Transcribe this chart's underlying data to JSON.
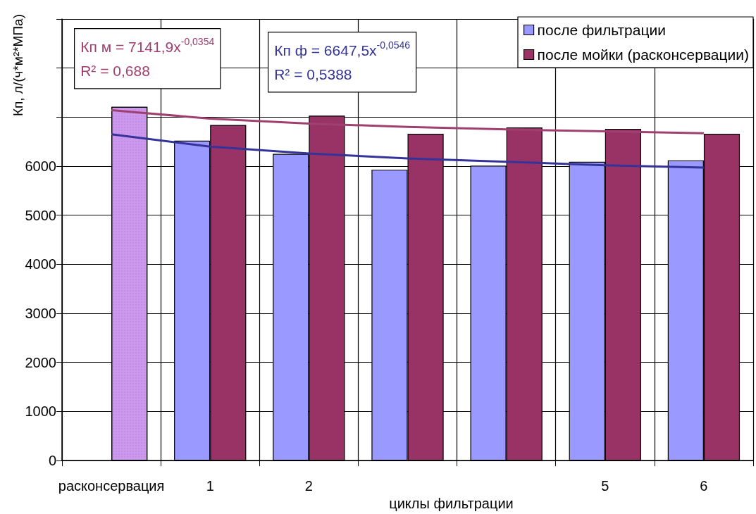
{
  "chart_data": {
    "type": "bar",
    "xlabel": "циклы фильтрации",
    "ylabel": "Кп, л/(ч*м²*МПа)",
    "categories": [
      "расконсервация",
      "1",
      "2",
      null,
      null,
      "5",
      "6"
    ],
    "series": [
      {
        "name": "после фильтрации",
        "color": "#9999ff",
        "values": [
          null,
          6520,
          6250,
          5930,
          6010,
          6090,
          6120
        ]
      },
      {
        "name": "после мойки (расконсервации)",
        "color": "#993366",
        "colors": [
          "#cc99ee",
          "#993366",
          "#993366",
          "#993366",
          "#993366",
          "#993366",
          "#993366"
        ],
        "values": [
          7210,
          6840,
          7030,
          6660,
          6790,
          6760,
          6660
        ]
      },
      {
        "type": "line",
        "color": "#a04070",
        "values": [
          7140,
          6970,
          6870,
          6800,
          6750,
          6710,
          6670
        ]
      },
      {
        "type": "line",
        "color": "#333399",
        "values": [
          6650,
          6400,
          6260,
          6160,
          6090,
          6020,
          5970
        ]
      }
    ],
    "ylim": [
      0,
      9000
    ],
    "yticks": [
      0,
      1000,
      2000,
      3000,
      4000,
      5000,
      6000,
      {
        "value": 7000,
        "label": null
      },
      {
        "value": 8000,
        "label": null
      },
      {
        "value": 9000,
        "label": null
      }
    ],
    "grid": true,
    "legend": "top right",
    "marker": "none",
    "annotations": [
      "Кп м = 7141,9x$^{-0,0354}$\nR² = 0,688",
      "Кп ф = 6647,5x$^{-0,0546}$\nR² = 0,5388"
    ]
  }
}
